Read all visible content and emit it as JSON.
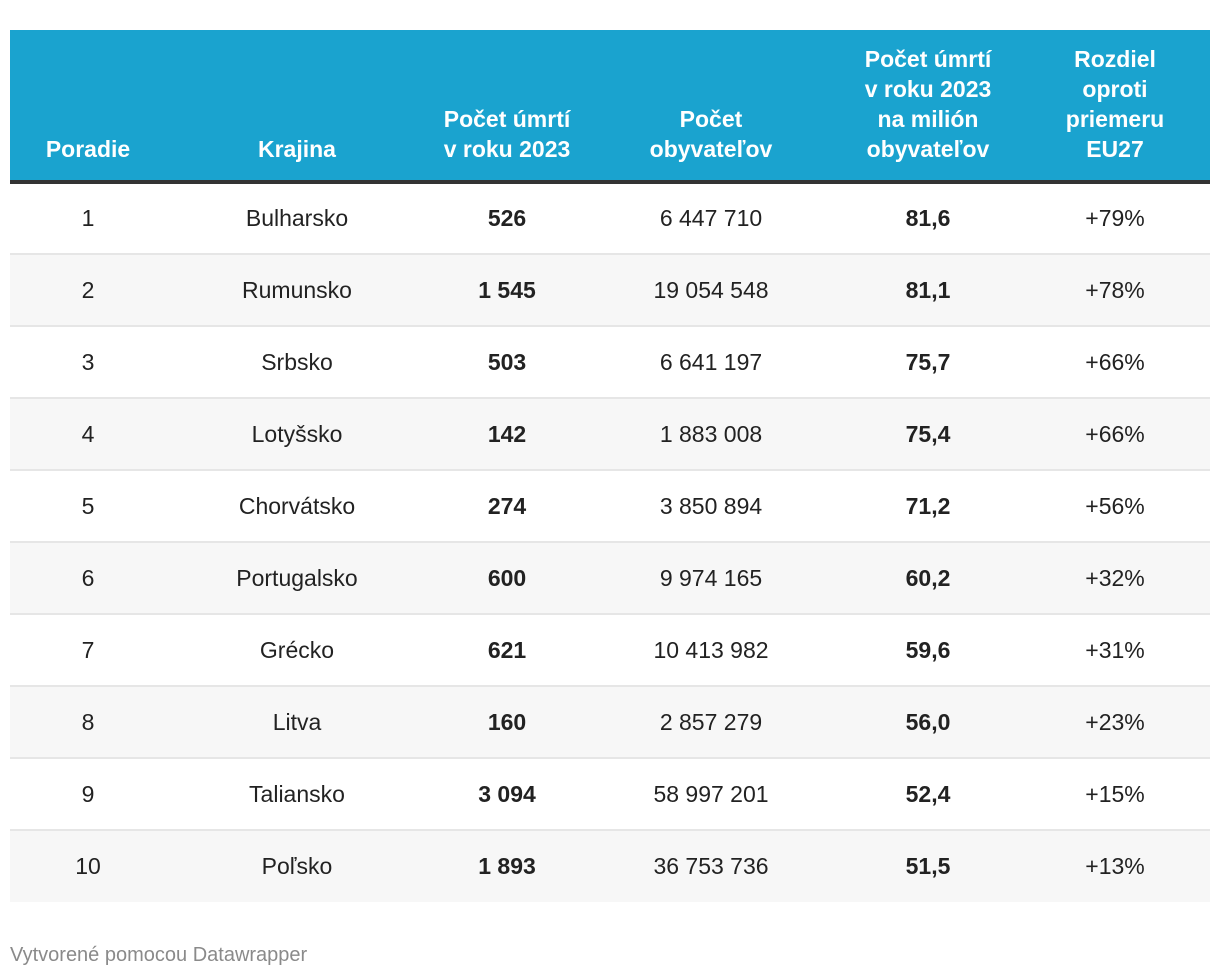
{
  "table": {
    "headers": [
      "Poradie",
      "Krajina",
      "Počet úmrtí v roku 2023",
      "Počet obyvateľov",
      "Počet úmrtí v roku 2023 na milión obyvateľov",
      "Rozdiel oproti priemeru EU27"
    ],
    "rows": [
      [
        "1",
        "Bulharsko",
        "526",
        "6 447 710",
        "81,6",
        "+79%"
      ],
      [
        "2",
        "Rumunsko",
        "1 545",
        "19 054 548",
        "81,1",
        "+78%"
      ],
      [
        "3",
        "Srbsko",
        "503",
        "6 641 197",
        "75,7",
        "+66%"
      ],
      [
        "4",
        "Lotyšsko",
        "142",
        "1 883 008",
        "75,4",
        "+66%"
      ],
      [
        "5",
        "Chorvátsko",
        "274",
        "3 850 894",
        "71,2",
        "+56%"
      ],
      [
        "6",
        "Portugalsko",
        "600",
        "9 974 165",
        "60,2",
        "+32%"
      ],
      [
        "7",
        "Grécko",
        "621",
        "10 413 982",
        "59,6",
        "+31%"
      ],
      [
        "8",
        "Litva",
        "160",
        "2 857 279",
        "56,0",
        "+23%"
      ],
      [
        "9",
        "Taliansko",
        "3 094",
        "58 997 201",
        "52,4",
        "+15%"
      ],
      [
        "10",
        "Poľsko",
        "1 893",
        "36 753 736",
        "51,5",
        "+13%"
      ]
    ]
  },
  "footer": {
    "credit": "Vytvorené pomocou Datawrapper"
  },
  "colors": {
    "header_bg": "#1aa3cf",
    "header_text": "#ffffff",
    "stripe": "#f7f7f7",
    "header_rule": "#333333"
  }
}
